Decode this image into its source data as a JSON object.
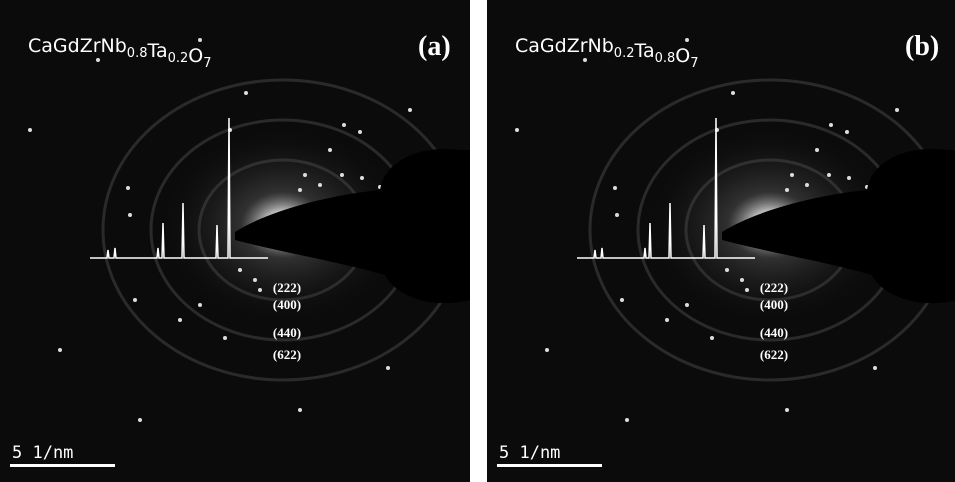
{
  "panels": [
    {
      "formula": [
        {
          "base": "CaGdZrNb",
          "sub": "0.8"
        },
        {
          "base": "Ta",
          "sub": "0.2"
        },
        {
          "base": "O",
          "sub": "7"
        }
      ],
      "label": "(a)",
      "rings": [
        "(222)",
        "(400)",
        "(440)",
        "(622)"
      ],
      "scale_bar": "5 1/nm"
    },
    {
      "formula": [
        {
          "base": "CaGdZrNb",
          "sub": "0.2"
        },
        {
          "base": "Ta",
          "sub": "0.8"
        },
        {
          "base": "O",
          "sub": "7"
        }
      ],
      "label": "(b)",
      "rings": [
        "(222)",
        "(400)",
        "(440)",
        "(622)"
      ],
      "scale_bar": "5 1/nm"
    }
  ]
}
